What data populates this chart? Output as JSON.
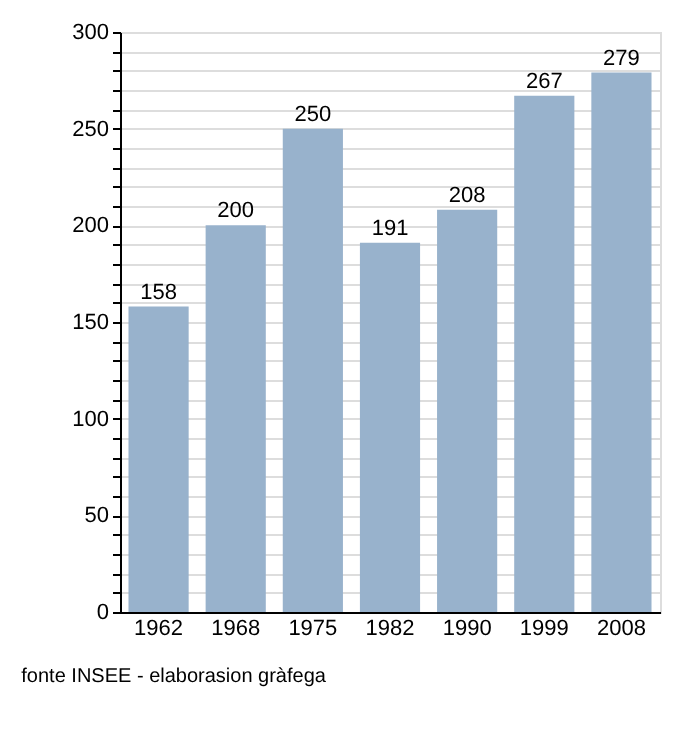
{
  "chart_data": {
    "type": "bar",
    "categories": [
      "1962",
      "1968",
      "1975",
      "1982",
      "1990",
      "1999",
      "2008"
    ],
    "values": [
      158,
      200,
      250,
      191,
      208,
      267,
      279
    ],
    "color": "#98b2cc",
    "ylim": [
      0,
      300
    ],
    "yticks": [
      0,
      {
        "value": 10,
        "label": null
      },
      {
        "value": 20,
        "label": null
      },
      {
        "value": 30,
        "label": null
      },
      {
        "value": 40,
        "label": null
      },
      50,
      {
        "value": 60,
        "label": null
      },
      {
        "value": 70,
        "label": null
      },
      {
        "value": 80,
        "label": null
      },
      {
        "value": 90,
        "label": null
      },
      100,
      {
        "value": 110,
        "label": null
      },
      {
        "value": 120,
        "label": null
      },
      {
        "value": 130,
        "label": null
      },
      {
        "value": 140,
        "label": null
      },
      150,
      {
        "value": 160,
        "label": null
      },
      {
        "value": 170,
        "label": null
      },
      {
        "value": 180,
        "label": null
      },
      {
        "value": 190,
        "label": null
      },
      200,
      {
        "value": 210,
        "label": null
      },
      {
        "value": 220,
        "label": null
      },
      {
        "value": 230,
        "label": null
      },
      {
        "value": 240,
        "label": null
      },
      250,
      {
        "value": 260,
        "label": null
      },
      {
        "value": 270,
        "label": null
      },
      {
        "value": 280,
        "label": null
      },
      {
        "value": 290,
        "label": null
      },
      300
    ],
    "grid": true,
    "data_labels": true,
    "annotations": [
      "fonte INSEE - elaborasion gràfega"
    ]
  }
}
